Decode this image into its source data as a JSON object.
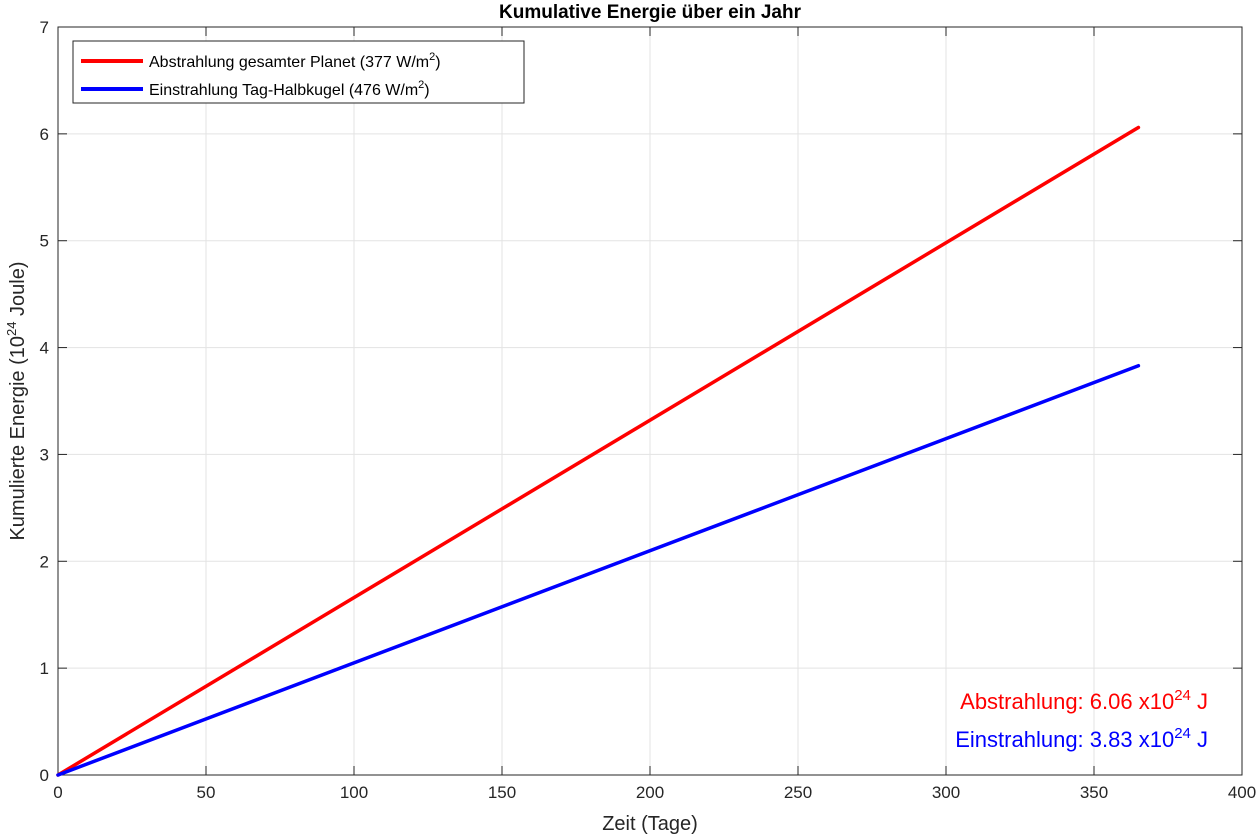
{
  "chart_data": {
    "type": "line",
    "title": "Kumulative Energie über ein Jahr",
    "xlabel": "Zeit (Tage)",
    "ylabel": {
      "prefix": "Kumulierte  Energie  (10",
      "exponent": "24",
      "suffix": "  Joule)"
    },
    "xlim": [
      0,
      400
    ],
    "ylim": [
      0,
      7
    ],
    "xticks": [
      0,
      50,
      100,
      150,
      200,
      250,
      300,
      350,
      400
    ],
    "yticks": [
      0,
      1,
      2,
      3,
      4,
      5,
      6,
      7
    ],
    "grid": true,
    "legend_position": "top-left",
    "series": [
      {
        "name_prefix": "Abstrahlung  gesamter  Planet  (377  W/m",
        "name_exponent": "2",
        "name_suffix": ")",
        "color": "#ff0000",
        "x": [
          0,
          365
        ],
        "y": [
          0,
          6.06
        ]
      },
      {
        "name_prefix": "Einstrahlung  Tag-Halbkugel  (476  W/m",
        "name_exponent": "2",
        "name_suffix": ")",
        "color": "#0000ff",
        "x": [
          0,
          365
        ],
        "y": [
          0,
          3.83
        ]
      }
    ],
    "annotations": [
      {
        "prefix": "Abstrahlung:  6.06  x10",
        "exponent": "24",
        "suffix": "  J",
        "color": "#ff0000"
      },
      {
        "prefix": "Einstrahlung:  3.83  x10",
        "exponent": "24",
        "suffix": "  J",
        "color": "#0000ff"
      }
    ]
  }
}
